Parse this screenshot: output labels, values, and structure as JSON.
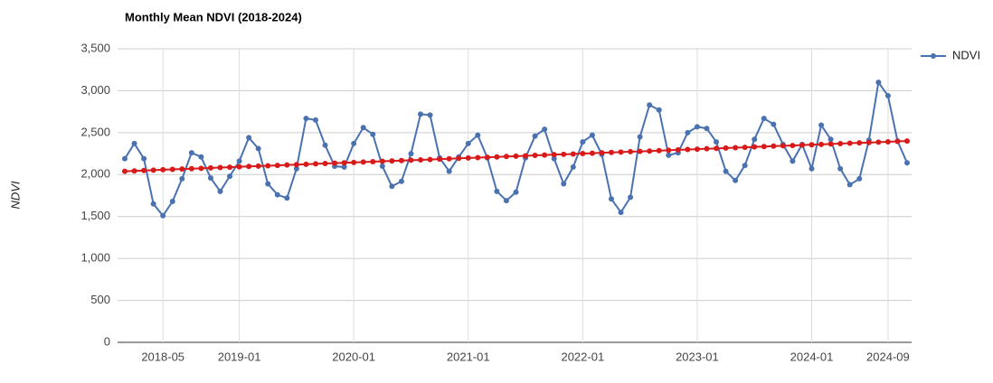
{
  "chart_data": {
    "type": "line",
    "title": "Monthly Mean NDVI (2018-2024)",
    "y_label": "NDVI",
    "x": [
      "2018-01",
      "2018-02",
      "2018-03",
      "2018-04",
      "2018-05",
      "2018-06",
      "2018-07",
      "2018-08",
      "2018-09",
      "2018-10",
      "2018-11",
      "2018-12",
      "2019-01",
      "2019-02",
      "2019-03",
      "2019-04",
      "2019-05",
      "2019-06",
      "2019-07",
      "2019-08",
      "2019-09",
      "2019-10",
      "2019-11",
      "2019-12",
      "2020-01",
      "2020-02",
      "2020-03",
      "2020-04",
      "2020-05",
      "2020-06",
      "2020-07",
      "2020-08",
      "2020-09",
      "2020-10",
      "2020-11",
      "2020-12",
      "2021-01",
      "2021-02",
      "2021-03",
      "2021-04",
      "2021-05",
      "2021-06",
      "2021-07",
      "2021-08",
      "2021-09",
      "2021-10",
      "2021-11",
      "2021-12",
      "2022-01",
      "2022-02",
      "2022-03",
      "2022-04",
      "2022-05",
      "2022-06",
      "2022-07",
      "2022-08",
      "2022-09",
      "2022-10",
      "2022-11",
      "2022-12",
      "2023-01",
      "2023-02",
      "2023-03",
      "2023-04",
      "2023-05",
      "2023-06",
      "2023-07",
      "2023-08",
      "2023-09",
      "2023-10",
      "2023-11",
      "2023-12",
      "2024-01",
      "2024-02",
      "2024-03",
      "2024-04",
      "2024-05",
      "2024-06",
      "2024-07",
      "2024-08",
      "2024-09",
      "2024-10",
      "2024-11"
    ],
    "series": [
      {
        "name": "NDVI",
        "color": "#4a72b0",
        "values": [
          2190,
          2370,
          2190,
          1650,
          1510,
          1680,
          1950,
          2260,
          2210,
          1960,
          1800,
          1980,
          2160,
          2440,
          2310,
          1890,
          1760,
          1720,
          2070,
          2670,
          2650,
          2350,
          2100,
          2090,
          2370,
          2560,
          2480,
          2100,
          1860,
          1920,
          2250,
          2720,
          2710,
          2200,
          2040,
          2210,
          2370,
          2470,
          2200,
          1800,
          1690,
          1790,
          2200,
          2460,
          2540,
          2190,
          1890,
          2090,
          2390,
          2470,
          2240,
          1710,
          1550,
          1730,
          2450,
          2830,
          2770,
          2230,
          2260,
          2500,
          2570,
          2550,
          2390,
          2040,
          1930,
          2110,
          2420,
          2670,
          2600,
          2360,
          2160,
          2360,
          2070,
          2590,
          2420,
          2070,
          1880,
          1950,
          2410,
          3100,
          2940,
          2400,
          2140
        ]
      },
      {
        "color": "#d81a1a",
        "values": [
          2040,
          2044,
          2049,
          2053,
          2058,
          2062,
          2066,
          2071,
          2075,
          2080,
          2084,
          2088,
          2093,
          2097,
          2101,
          2106,
          2110,
          2115,
          2119,
          2123,
          2128,
          2132,
          2137,
          2141,
          2145,
          2150,
          2154,
          2159,
          2163,
          2167,
          2172,
          2176,
          2180,
          2185,
          2189,
          2194,
          2198,
          2202,
          2207,
          2211,
          2216,
          2220,
          2224,
          2229,
          2233,
          2238,
          2242,
          2246,
          2251,
          2255,
          2260,
          2264,
          2268,
          2273,
          2277,
          2281,
          2286,
          2290,
          2295,
          2299,
          2303,
          2308,
          2312,
          2317,
          2321,
          2325,
          2330,
          2334,
          2339,
          2343,
          2347,
          2352,
          2356,
          2360,
          2365,
          2369,
          2374,
          2378,
          2382,
          2387,
          2391,
          2396,
          2400
        ]
      }
    ],
    "xticks": [
      "2018-05",
      "2019-01",
      "2020-01",
      "2021-01",
      "2022-01",
      "2023-01",
      "2024-01",
      "2024-09"
    ],
    "ylim": [
      0,
      3500
    ],
    "yticks": [
      0,
      500,
      {
        "value": 1000,
        "label": "1,000"
      },
      {
        "value": 1500,
        "label": "1,500"
      },
      {
        "value": 2000,
        "label": "2,000"
      },
      {
        "value": 2500,
        "label": "2,500"
      },
      {
        "value": 3000,
        "label": "3,000"
      },
      {
        "value": 3500,
        "label": "3,500"
      }
    ],
    "grid": true,
    "legend": "right"
  }
}
